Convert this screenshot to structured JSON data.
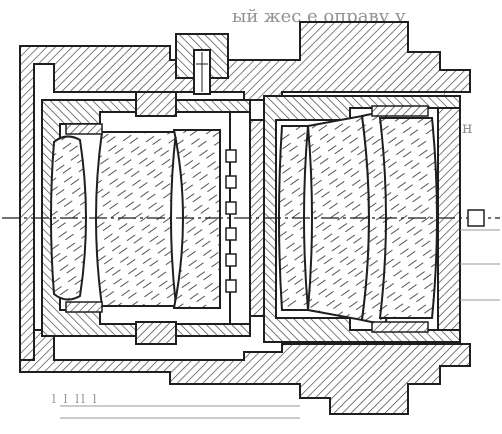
{
  "diagram": {
    "colors": {
      "ink": "#1f1f1f",
      "hatch": "#3a3a3a",
      "glass": "#555555",
      "paper": "#ffffff",
      "faint": "#9a9a9a"
    },
    "background_text": {
      "top_fragment": "ый жес   е оправу у",
      "right_fragment_1": "у",
      "right_fragment_2": "н",
      "bottom_fragment": "l l ll l"
    },
    "elements": {
      "front_group_lenses": 3,
      "rear_group_lenses": 4,
      "optical_axis": "dash-dot"
    }
  }
}
